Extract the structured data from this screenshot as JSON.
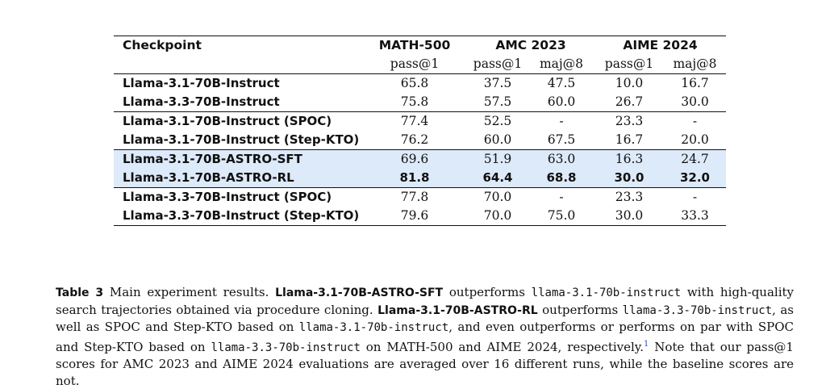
{
  "table": {
    "header": {
      "checkpoint": "Checkpoint",
      "groups": [
        "MATH-500",
        "AMC 2023",
        "AIME 2024"
      ],
      "subcols": [
        "pass@1",
        "pass@1",
        "maj@8",
        "pass@1",
        "maj@8"
      ]
    },
    "rows": [
      {
        "label": "Llama-3.1-70B-Instruct",
        "values": [
          "65.8",
          "37.5",
          "47.5",
          "10.0",
          "16.7"
        ]
      },
      {
        "label": "Llama-3.3-70B-Instruct",
        "values": [
          "75.8",
          "57.5",
          "60.0",
          "26.7",
          "30.0"
        ]
      },
      {
        "label": "Llama-3.1-70B-Instruct (SPOC)",
        "values": [
          "77.4",
          "52.5",
          "-",
          "23.3",
          "-"
        ]
      },
      {
        "label": "Llama-3.1-70B-Instruct (Step-KTO)",
        "values": [
          "76.2",
          "60.0",
          "67.5",
          "16.7",
          "20.0"
        ]
      },
      {
        "label": "Llama-3.1-70B-ASTRO-SFT",
        "values": [
          "69.6",
          "51.9",
          "63.0",
          "16.3",
          "24.7"
        ]
      },
      {
        "label": "Llama-3.1-70B-ASTRO-RL",
        "values": [
          "81.8",
          "64.4",
          "68.8",
          "30.0",
          "32.0"
        ]
      },
      {
        "label": "Llama-3.3-70B-Instruct (SPOC)",
        "values": [
          "77.8",
          "70.0",
          "-",
          "23.3",
          "-"
        ]
      },
      {
        "label": "Llama-3.3-70B-Instruct (Step-KTO)",
        "values": [
          "79.6",
          "70.0",
          "75.0",
          "30.0",
          "33.3"
        ]
      }
    ],
    "highlight_color": "#ddeaf9"
  },
  "caption": {
    "label": "Table 3",
    "t1": "Main experiment results.",
    "b1": "Llama-3.1-70B-ASTRO-SFT",
    "t2": "outperforms",
    "m1": "llama-3.1-70b-instruct",
    "t3": "with high-quality search trajectories obtained via procedure cloning.",
    "b2": "Llama-3.1-70B-ASTRO-RL",
    "t4": "outperforms",
    "m2": "llama-3.3-70b-instruct",
    "t5": ", as well as SPOC and Step-KTO based on",
    "m3": "llama-3.1-70b-instruct",
    "t6": ", and even outperforms or performs on par with SPOC and Step-KTO based on",
    "m4": "llama-3.3-70b-instruct",
    "t7": "on MATH-500 and AIME 2024, respectively.",
    "sup": "1",
    "t8": "Note that our pass@1 scores for AMC 2023 and AIME 2024 evaluations are averaged over 16 different runs, while the baseline scores are not."
  }
}
